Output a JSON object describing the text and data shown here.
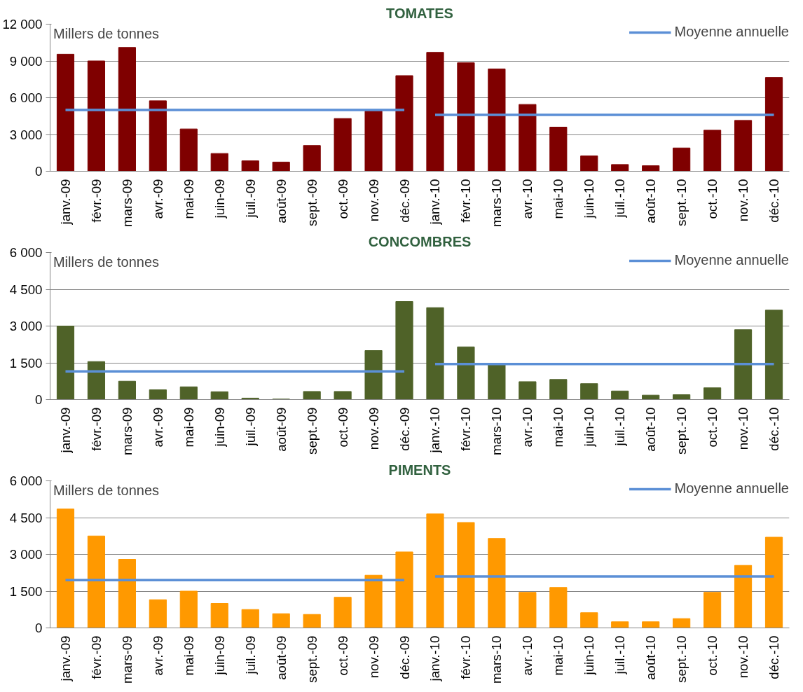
{
  "chart_data": [
    {
      "type": "bar",
      "title": "TOMATES",
      "ylabel": "Millers de tonnes",
      "grid": "y",
      "legend": "top right",
      "categories": [
        "janv.-09",
        "févr.-09",
        "mars-09",
        "avr.-09",
        "mai-09",
        "juin-09",
        "juil.-09",
        "août-09",
        "sept.-09",
        "oct.-09",
        "nov.-09",
        "déc.-09",
        "janv.-10",
        "févr.-10",
        "mars-10",
        "avr.-10",
        "mai-10",
        "juin-10",
        "juil.-10",
        "août-10",
        "sept.-10",
        "oct.-10",
        "nov.-10",
        "déc.-10"
      ],
      "ylim": [
        0,
        12000
      ],
      "yticks": [
        0,
        {
          "value": 3000,
          "label": "3 000"
        },
        {
          "value": 6000,
          "label": "6 000"
        },
        {
          "value": 9000,
          "label": "9 000"
        },
        {
          "value": 12000,
          "label": "12 000"
        }
      ],
      "series": [
        {
          "color": "#7f0000",
          "values": [
            9550,
            9000,
            10100,
            5750,
            3450,
            1450,
            850,
            750,
            2100,
            4300,
            4900,
            7800,
            9700,
            8850,
            8350,
            5450,
            3600,
            1250,
            550,
            450,
            1900,
            3350,
            4150,
            7650
          ]
        },
        {
          "type": "line",
          "name": "Moyenne annuelle",
          "color": "#5b8fd6",
          "values": [
            5000,
            5000,
            5000,
            5000,
            5000,
            5000,
            5000,
            5000,
            5000,
            5000,
            5000,
            5000,
            null,
            null,
            null,
            null,
            null,
            null,
            null,
            null,
            null,
            null,
            null,
            null
          ]
        },
        {
          "type": "line",
          "color": "#5b8fd6",
          "values": [
            null,
            null,
            null,
            null,
            null,
            null,
            null,
            null,
            null,
            null,
            null,
            null,
            4600,
            4600,
            4600,
            4600,
            4600,
            4600,
            4600,
            4600,
            4600,
            4600,
            4600,
            4600
          ]
        }
      ]
    },
    {
      "type": "bar",
      "title": "CONCOMBRES",
      "ylabel": "Millers de tonnes",
      "grid": "y",
      "legend": "top right",
      "categories": [
        "janv.-09",
        "févr.-09",
        "mars-09",
        "avr.-09",
        "mai-09",
        "juin-09",
        "juil.-09",
        "août-09",
        "sept.-09",
        "oct.-09",
        "nov.-09",
        "déc.-09",
        "janv.-10",
        "févr.-10",
        "mars-10",
        "avr.-10",
        "mai-10",
        "juin-10",
        "juil.-10",
        "août-10",
        "sept.-10",
        "oct.-10",
        "nov.-10",
        "déc.-10"
      ],
      "ylim": [
        0,
        6000
      ],
      "yticks": [
        0,
        {
          "value": 1500,
          "label": "1 500"
        },
        {
          "value": 3000,
          "label": "3 000"
        },
        {
          "value": 4500,
          "label": "4 500"
        },
        {
          "value": 6000,
          "label": "6 000"
        }
      ],
      "series": [
        {
          "color": "#4f6228",
          "values": [
            3000,
            1550,
            750,
            400,
            520,
            320,
            60,
            20,
            330,
            330,
            2000,
            4000,
            3750,
            2150,
            1450,
            730,
            820,
            650,
            350,
            180,
            200,
            480,
            2850,
            3650
          ]
        },
        {
          "type": "line",
          "name": "Moyenne annuelle",
          "color": "#5b8fd6",
          "values": [
            1150,
            1150,
            1150,
            1150,
            1150,
            1150,
            1150,
            1150,
            1150,
            1150,
            1150,
            1150,
            null,
            null,
            null,
            null,
            null,
            null,
            null,
            null,
            null,
            null,
            null,
            null
          ]
        },
        {
          "type": "line",
          "color": "#5b8fd6",
          "values": [
            null,
            null,
            null,
            null,
            null,
            null,
            null,
            null,
            null,
            null,
            null,
            null,
            1450,
            1450,
            1450,
            1450,
            1450,
            1450,
            1450,
            1450,
            1450,
            1450,
            1450,
            1450
          ]
        }
      ]
    },
    {
      "type": "bar",
      "title": "PIMENTS",
      "ylabel": "Millers de tonnes",
      "grid": "y",
      "legend": "top right",
      "categories": [
        "janv.-09",
        "févr.-09",
        "mars-09",
        "avr.-09",
        "mai-09",
        "juin-09",
        "juil.-09",
        "août-09",
        "sept.-09",
        "oct.-09",
        "nov.-09",
        "déc.-09",
        "janv.-10",
        "févr.-10",
        "mars-10",
        "avr.-10",
        "mai-10",
        "juin-10",
        "juil.-10",
        "août-10",
        "sept.-10",
        "oct.-10",
        "nov.-10",
        "déc.-10"
      ],
      "ylim": [
        0,
        6000
      ],
      "yticks": [
        0,
        {
          "value": 1500,
          "label": "1 500"
        },
        {
          "value": 3000,
          "label": "3 000"
        },
        {
          "value": 4500,
          "label": "4 500"
        },
        {
          "value": 6000,
          "label": "6 000"
        }
      ],
      "series": [
        {
          "color": "#ff9900",
          "values": [
            4850,
            3750,
            2800,
            1150,
            1500,
            1000,
            750,
            580,
            550,
            1250,
            2150,
            3100,
            4650,
            4300,
            3650,
            1450,
            1650,
            620,
            250,
            250,
            380,
            1450,
            2550,
            3700
          ]
        },
        {
          "type": "line",
          "name": "Moyenne annuelle",
          "color": "#5b8fd6",
          "values": [
            1950,
            1950,
            1950,
            1950,
            1950,
            1950,
            1950,
            1950,
            1950,
            1950,
            1950,
            1950,
            null,
            null,
            null,
            null,
            null,
            null,
            null,
            null,
            null,
            null,
            null,
            null
          ]
        },
        {
          "type": "line",
          "color": "#5b8fd6",
          "values": [
            null,
            null,
            null,
            null,
            null,
            null,
            null,
            null,
            null,
            null,
            null,
            null,
            2100,
            2100,
            2100,
            2100,
            2100,
            2100,
            2100,
            2100,
            2100,
            2100,
            2100,
            2100
          ]
        }
      ]
    }
  ]
}
